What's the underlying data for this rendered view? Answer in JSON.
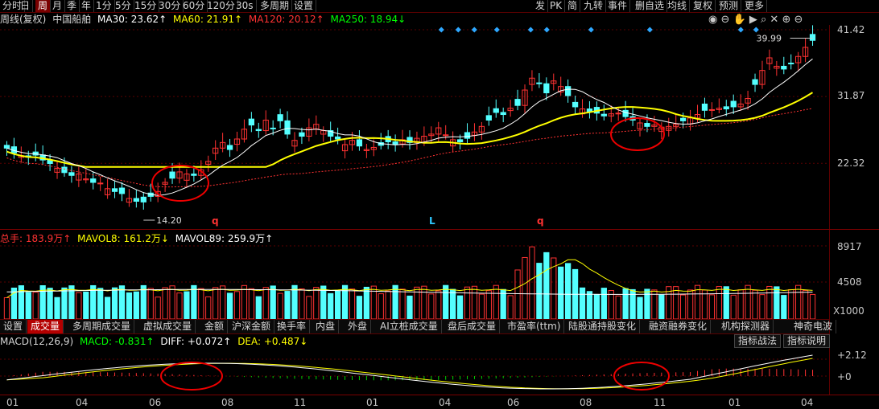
{
  "toolbar": {
    "left_items": [
      "分时",
      "日",
      "周",
      "月",
      "季",
      "年",
      "1分",
      "5分",
      "15分",
      "30分",
      "60分",
      "120分",
      "30s",
      "多周期",
      "设置"
    ],
    "active_item": "周",
    "right_items": [
      "发",
      "PK",
      "简",
      "九转",
      "事件",
      "删自选",
      "均线",
      "复权",
      "预测",
      "更多"
    ]
  },
  "header": {
    "period": "周线(复权)",
    "stock_name": "中国船舶",
    "ma30": "MA30: 23.62↑",
    "ma60": "MA60: 21.91↑",
    "ma120": "MA120: 20.12↑",
    "ma250": "MA250: 18.94↓"
  },
  "main_axis": {
    "labels": [
      "41.42",
      "31.87",
      "22.32"
    ],
    "high_label": "39.99",
    "low_label": "14.20"
  },
  "volume": {
    "header_total": "总手: 183.9万↑",
    "header_mavol8": "MAVOL8: 161.2万↓",
    "header_mavol89": "MAVOL89: 259.9万↑",
    "axis_labels": [
      "8917",
      "4508"
    ],
    "unit": "X1000"
  },
  "tabs": [
    "设置",
    "成交量",
    "多周期成交量",
    "虚拟成交量",
    "金额",
    "沪深金额",
    "换手率",
    "内盘",
    "外盘",
    "AI立桩成交量",
    "盘后成交量",
    "市盈率(ttm)",
    "陆股通持股变化",
    "融资融券变化",
    "机构探测器",
    "神奇电波"
  ],
  "active_tab": "成交量",
  "macd": {
    "label": "MACD(12,26,9)",
    "macd_val": "MACD: -0.831↑",
    "diff": "DIFF: +0.072↑",
    "dea": "DEA: +0.487↓",
    "btn_strategy": "指标战法",
    "btn_help": "指标说明",
    "axis_labels": [
      "+2.12",
      "+0"
    ]
  },
  "x_ticks": [
    "01",
    "04",
    "06",
    "08",
    "11",
    "01",
    "04",
    "06",
    "08",
    "11",
    "01",
    "04"
  ],
  "markers": {
    "q1": "q",
    "l": "L",
    "q2": "q"
  },
  "colors": {
    "up": "#ff3232",
    "down": "#54ffff",
    "ma30": "#ffffff",
    "ma60": "#ffff00",
    "ma120": "#ff3232",
    "ma250": "#00ff00",
    "axis": "#7a0000"
  }
}
